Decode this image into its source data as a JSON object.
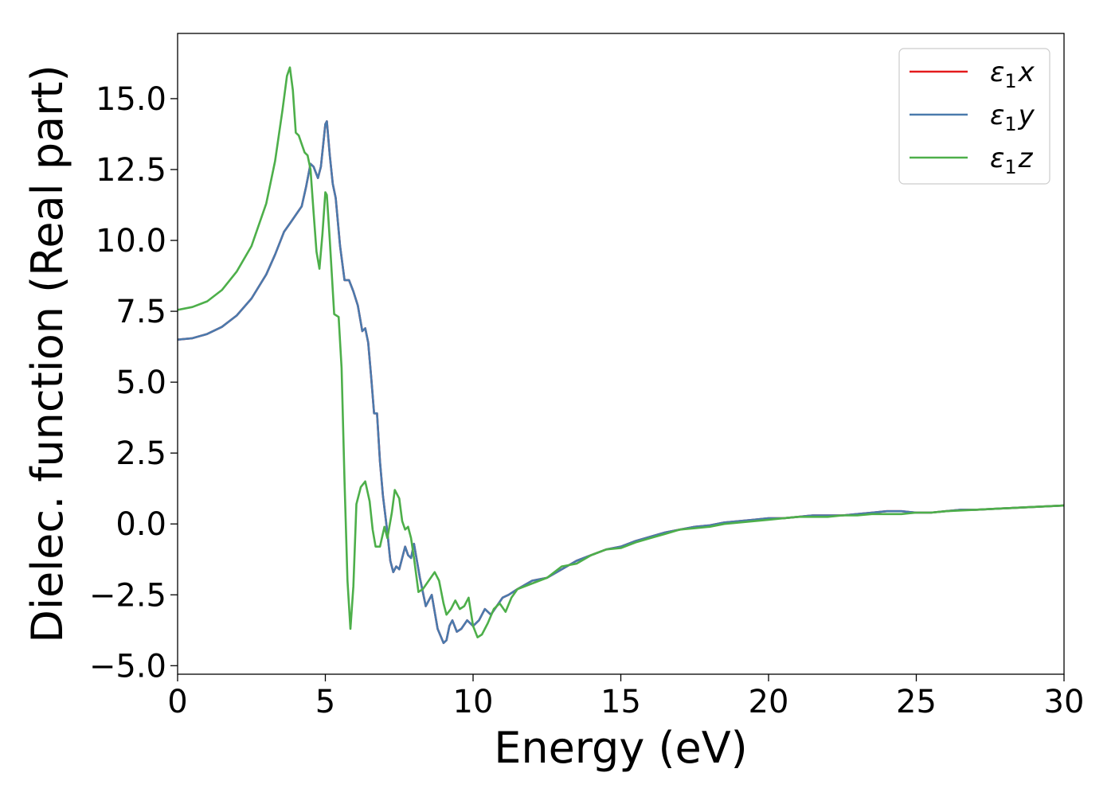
{
  "chart_data": {
    "type": "line",
    "xlabel": "Energy (eV)",
    "ylabel": "Dielec. function (Real part)",
    "xlim": [
      0,
      30
    ],
    "ylim": [
      -5.3,
      17.3
    ],
    "xticks": [
      "0",
      "5",
      "10",
      "15",
      "20",
      "25",
      "30"
    ],
    "xtick_values": [
      0,
      5,
      10,
      15,
      20,
      25,
      30
    ],
    "yticks": [
      "−5.0",
      "−2.5",
      "0.0",
      "2.5",
      "5.0",
      "7.5",
      "10.0",
      "12.5",
      "15.0"
    ],
    "ytick_values": [
      -5.0,
      -2.5,
      0.0,
      2.5,
      5.0,
      7.5,
      10.0,
      12.5,
      15.0
    ],
    "grid": false,
    "legend": "top-right",
    "series": [
      {
        "name": "ε1x",
        "legend_base": "ε",
        "legend_sub": "1",
        "legend_suffix": "x",
        "color": "#e41a1c",
        "x": [
          0,
          0.5,
          1.0,
          1.5,
          2.0,
          2.5,
          3.0,
          3.3,
          3.6,
          3.8,
          4.0,
          4.2,
          4.35,
          4.5,
          4.6,
          4.75,
          4.85,
          5.0,
          5.05,
          5.15,
          5.25,
          5.35,
          5.5,
          5.65,
          5.8,
          5.95,
          6.1,
          6.25,
          6.35,
          6.45,
          6.55,
          6.65,
          6.75,
          6.85,
          6.95,
          7.1,
          7.2,
          7.3,
          7.4,
          7.5,
          7.6,
          7.7,
          7.8,
          7.9,
          8.0,
          8.2,
          8.4,
          8.6,
          8.8,
          9.0,
          9.1,
          9.2,
          9.3,
          9.45,
          9.6,
          9.8,
          10.0,
          10.2,
          10.4,
          10.6,
          10.8,
          11.0,
          11.2,
          11.5,
          12.0,
          12.5,
          13.0,
          13.5,
          14.0,
          14.5,
          15.0,
          15.5,
          16.0,
          16.5,
          17.0,
          17.5,
          18.0,
          18.5,
          19.0,
          19.5,
          20.0,
          20.5,
          21.0,
          21.5,
          22.0,
          22.5,
          23.0,
          23.5,
          24.0,
          24.5,
          25.0,
          25.5,
          26.0,
          26.5,
          27.0,
          28.0,
          29.0,
          30.0
        ],
        "y": [
          6.5,
          6.55,
          6.7,
          6.95,
          7.35,
          7.95,
          8.8,
          9.5,
          10.3,
          10.6,
          10.9,
          11.2,
          11.9,
          12.7,
          12.6,
          12.2,
          12.6,
          14.1,
          14.2,
          13.0,
          12.0,
          11.5,
          9.8,
          8.6,
          8.6,
          8.2,
          7.7,
          6.8,
          6.9,
          6.4,
          5.2,
          3.9,
          3.9,
          2.2,
          1.0,
          -0.3,
          -1.3,
          -1.7,
          -1.5,
          -1.6,
          -1.2,
          -0.8,
          -1.1,
          -1.2,
          -0.7,
          -1.9,
          -2.9,
          -2.5,
          -3.7,
          -4.2,
          -4.1,
          -3.6,
          -3.4,
          -3.8,
          -3.7,
          -3.4,
          -3.6,
          -3.4,
          -3.0,
          -3.2,
          -2.9,
          -2.6,
          -2.5,
          -2.3,
          -2.0,
          -1.9,
          -1.6,
          -1.3,
          -1.1,
          -0.9,
          -0.8,
          -0.6,
          -0.45,
          -0.3,
          -0.2,
          -0.1,
          -0.05,
          0.05,
          0.1,
          0.15,
          0.2,
          0.2,
          0.25,
          0.3,
          0.3,
          0.3,
          0.35,
          0.4,
          0.45,
          0.45,
          0.4,
          0.4,
          0.45,
          0.5,
          0.5,
          0.55,
          0.6,
          0.65
        ]
      },
      {
        "name": "ε1y",
        "legend_base": "ε",
        "legend_sub": "1",
        "legend_suffix": "y",
        "color": "#4a7aad",
        "x": [
          0,
          0.5,
          1.0,
          1.5,
          2.0,
          2.5,
          3.0,
          3.3,
          3.6,
          3.8,
          4.0,
          4.2,
          4.35,
          4.5,
          4.6,
          4.75,
          4.85,
          5.0,
          5.05,
          5.15,
          5.25,
          5.35,
          5.5,
          5.65,
          5.8,
          5.95,
          6.1,
          6.25,
          6.35,
          6.45,
          6.55,
          6.65,
          6.75,
          6.85,
          6.95,
          7.1,
          7.2,
          7.3,
          7.4,
          7.5,
          7.6,
          7.7,
          7.8,
          7.9,
          8.0,
          8.2,
          8.4,
          8.6,
          8.8,
          9.0,
          9.1,
          9.2,
          9.3,
          9.45,
          9.6,
          9.8,
          10.0,
          10.2,
          10.4,
          10.6,
          10.8,
          11.0,
          11.2,
          11.5,
          12.0,
          12.5,
          13.0,
          13.5,
          14.0,
          14.5,
          15.0,
          15.5,
          16.0,
          16.5,
          17.0,
          17.5,
          18.0,
          18.5,
          19.0,
          19.5,
          20.0,
          20.5,
          21.0,
          21.5,
          22.0,
          22.5,
          23.0,
          23.5,
          24.0,
          24.5,
          25.0,
          25.5,
          26.0,
          26.5,
          27.0,
          28.0,
          29.0,
          30.0
        ],
        "y": [
          6.5,
          6.55,
          6.7,
          6.95,
          7.35,
          7.95,
          8.8,
          9.5,
          10.3,
          10.6,
          10.9,
          11.2,
          11.9,
          12.7,
          12.6,
          12.2,
          12.6,
          14.1,
          14.2,
          13.0,
          12.0,
          11.5,
          9.8,
          8.6,
          8.6,
          8.2,
          7.7,
          6.8,
          6.9,
          6.4,
          5.2,
          3.9,
          3.9,
          2.2,
          1.0,
          -0.3,
          -1.3,
          -1.7,
          -1.5,
          -1.6,
          -1.2,
          -0.8,
          -1.1,
          -1.2,
          -0.7,
          -1.9,
          -2.9,
          -2.5,
          -3.7,
          -4.2,
          -4.1,
          -3.6,
          -3.4,
          -3.8,
          -3.7,
          -3.4,
          -3.6,
          -3.4,
          -3.0,
          -3.2,
          -2.9,
          -2.6,
          -2.5,
          -2.3,
          -2.0,
          -1.9,
          -1.6,
          -1.3,
          -1.1,
          -0.9,
          -0.8,
          -0.6,
          -0.45,
          -0.3,
          -0.2,
          -0.1,
          -0.05,
          0.05,
          0.1,
          0.15,
          0.2,
          0.2,
          0.25,
          0.3,
          0.3,
          0.3,
          0.35,
          0.4,
          0.45,
          0.45,
          0.4,
          0.4,
          0.45,
          0.5,
          0.5,
          0.55,
          0.6,
          0.65
        ]
      },
      {
        "name": "ε1z",
        "legend_base": "ε",
        "legend_sub": "1",
        "legend_suffix": "z",
        "color": "#4daf4a",
        "x": [
          0,
          0.5,
          1.0,
          1.5,
          2.0,
          2.5,
          3.0,
          3.3,
          3.55,
          3.7,
          3.8,
          3.9,
          4.0,
          4.1,
          4.2,
          4.3,
          4.4,
          4.5,
          4.6,
          4.7,
          4.8,
          4.9,
          5.0,
          5.05,
          5.15,
          5.3,
          5.45,
          5.55,
          5.65,
          5.75,
          5.85,
          5.95,
          6.05,
          6.2,
          6.35,
          6.5,
          6.6,
          6.7,
          6.85,
          7.0,
          7.1,
          7.25,
          7.35,
          7.5,
          7.6,
          7.7,
          7.8,
          7.9,
          8.0,
          8.15,
          8.3,
          8.5,
          8.7,
          8.85,
          9.0,
          9.1,
          9.25,
          9.4,
          9.55,
          9.7,
          9.85,
          10.0,
          10.15,
          10.3,
          10.5,
          10.7,
          10.9,
          11.1,
          11.3,
          11.5,
          12.0,
          12.5,
          13.0,
          13.5,
          14.0,
          14.5,
          15.0,
          15.5,
          16.0,
          16.5,
          17.0,
          17.5,
          18.0,
          18.5,
          19.0,
          19.5,
          20.0,
          20.5,
          21.0,
          21.5,
          22.0,
          22.5,
          23.0,
          23.5,
          24.0,
          24.5,
          25.0,
          25.5,
          26.0,
          27.0,
          28.0,
          29.0,
          30.0
        ],
        "y": [
          7.55,
          7.65,
          7.85,
          8.25,
          8.9,
          9.8,
          11.3,
          12.8,
          14.6,
          15.8,
          16.1,
          15.3,
          13.8,
          13.7,
          13.4,
          13.1,
          13.0,
          12.5,
          11.0,
          9.6,
          9.0,
          10.2,
          11.7,
          11.6,
          10.0,
          7.4,
          7.3,
          5.5,
          1.5,
          -2.0,
          -3.7,
          -2.2,
          0.7,
          1.3,
          1.5,
          0.8,
          -0.2,
          -0.8,
          -0.8,
          -0.1,
          -0.5,
          0.4,
          1.2,
          0.9,
          0.1,
          -0.2,
          -0.1,
          -0.5,
          -1.2,
          -2.4,
          -2.3,
          -2.0,
          -1.7,
          -2.0,
          -2.8,
          -3.2,
          -3.0,
          -2.7,
          -3.0,
          -2.9,
          -2.6,
          -3.6,
          -4.0,
          -3.9,
          -3.5,
          -3.0,
          -2.8,
          -3.1,
          -2.6,
          -2.3,
          -2.1,
          -1.9,
          -1.5,
          -1.4,
          -1.1,
          -0.9,
          -0.85,
          -0.65,
          -0.5,
          -0.35,
          -0.2,
          -0.15,
          -0.1,
          0.0,
          0.05,
          0.1,
          0.15,
          0.2,
          0.25,
          0.25,
          0.25,
          0.3,
          0.3,
          0.35,
          0.35,
          0.35,
          0.4,
          0.4,
          0.45,
          0.5,
          0.55,
          0.6,
          0.65
        ]
      }
    ]
  }
}
